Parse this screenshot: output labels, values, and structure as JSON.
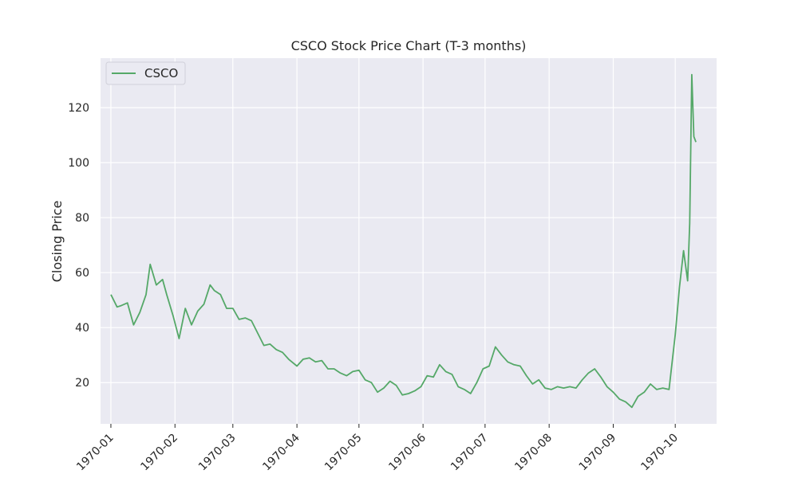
{
  "chart_data": {
    "type": "line",
    "title": "CSCO Stock Price Chart (T-3 months)",
    "xlabel": "",
    "ylabel": "Closing Price",
    "xlim": [
      "1969-12-27",
      "1970-10-21"
    ],
    "ylim": [
      5,
      138
    ],
    "x_ticks": [
      "1970-01-01",
      "1970-02-01",
      "1970-03-01",
      "1970-04-01",
      "1970-05-01",
      "1970-06-01",
      "1970-07-01",
      "1970-08-01",
      "1970-09-01",
      "1970-10-01"
    ],
    "x_tick_labels": [
      "1970-01",
      "1970-02",
      "1970-03",
      "1970-04",
      "1970-05",
      "1970-06",
      "1970-07",
      "1970-08",
      "1970-09",
      "1970-10"
    ],
    "y_ticks": [
      20,
      40,
      60,
      80,
      100,
      120
    ],
    "y_tick_labels": [
      "20",
      "40",
      "60",
      "80",
      "100",
      "120"
    ],
    "grid": true,
    "legend_position": "top-left",
    "colors": {
      "background": "#eaeaf2",
      "grid": "#ffffff",
      "series": "#55a868",
      "text": "#262626"
    },
    "series": [
      {
        "name": "CSCO",
        "x": [
          "1970-01-01",
          "1970-01-04",
          "1970-01-06",
          "1970-01-09",
          "1970-01-12",
          "1970-01-15",
          "1970-01-18",
          "1970-01-20",
          "1970-01-23",
          "1970-01-26",
          "1970-01-28",
          "1970-01-31",
          "1970-02-03",
          "1970-02-06",
          "1970-02-09",
          "1970-02-12",
          "1970-02-15",
          "1970-02-18",
          "1970-02-20",
          "1970-02-23",
          "1970-02-26",
          "1970-03-01",
          "1970-03-04",
          "1970-03-07",
          "1970-03-10",
          "1970-03-13",
          "1970-03-16",
          "1970-03-19",
          "1970-03-22",
          "1970-03-25",
          "1970-03-28",
          "1970-04-01",
          "1970-04-04",
          "1970-04-07",
          "1970-04-10",
          "1970-04-13",
          "1970-04-16",
          "1970-04-19",
          "1970-04-22",
          "1970-04-25",
          "1970-04-28",
          "1970-05-01",
          "1970-05-04",
          "1970-05-07",
          "1970-05-10",
          "1970-05-13",
          "1970-05-16",
          "1970-05-19",
          "1970-05-22",
          "1970-05-25",
          "1970-05-28",
          "1970-05-31",
          "1970-06-03",
          "1970-06-06",
          "1970-06-09",
          "1970-06-12",
          "1970-06-15",
          "1970-06-18",
          "1970-06-21",
          "1970-06-24",
          "1970-06-27",
          "1970-06-30",
          "1970-07-03",
          "1970-07-06",
          "1970-07-09",
          "1970-07-12",
          "1970-07-15",
          "1970-07-18",
          "1970-07-21",
          "1970-07-24",
          "1970-07-27",
          "1970-07-30",
          "1970-08-02",
          "1970-08-05",
          "1970-08-08",
          "1970-08-11",
          "1970-08-14",
          "1970-08-17",
          "1970-08-20",
          "1970-08-23",
          "1970-08-26",
          "1970-08-29",
          "1970-09-01",
          "1970-09-04",
          "1970-09-07",
          "1970-09-10",
          "1970-09-13",
          "1970-09-16",
          "1970-09-19",
          "1970-09-22",
          "1970-09-25",
          "1970-09-28",
          "1970-10-01",
          "1970-10-03",
          "1970-10-05",
          "1970-10-07",
          "1970-10-08",
          "1970-10-09",
          "1970-10-10",
          "1970-10-11"
        ],
        "values": [
          52.0,
          47.5,
          48.0,
          49.0,
          41.0,
          45.5,
          52.0,
          63.0,
          55.5,
          57.5,
          52.0,
          44.5,
          36.0,
          47.0,
          41.0,
          46.0,
          48.5,
          55.5,
          53.5,
          52.0,
          47.0,
          47.0,
          43.0,
          43.5,
          42.5,
          38.0,
          33.5,
          34.0,
          32.0,
          31.0,
          28.5,
          26.0,
          28.5,
          29.0,
          27.5,
          28.0,
          25.0,
          25.0,
          23.5,
          22.5,
          24.0,
          24.5,
          21.0,
          20.0,
          16.5,
          18.0,
          20.5,
          19.0,
          15.5,
          16.0,
          17.0,
          18.5,
          22.5,
          22.0,
          26.5,
          24.0,
          23.0,
          18.5,
          17.5,
          16.0,
          20.0,
          25.0,
          26.0,
          33.0,
          30.0,
          27.5,
          26.5,
          26.0,
          22.5,
          19.5,
          21.0,
          18.0,
          17.5,
          18.5,
          18.0,
          18.5,
          18.0,
          21.0,
          23.5,
          25.0,
          22.0,
          18.5,
          16.5,
          14.0,
          13.0,
          11.0,
          15.0,
          16.5,
          19.5,
          17.5,
          18.0,
          17.5,
          37.5,
          54.5,
          68.0,
          57.0,
          78.0,
          132.0,
          109.5,
          107.5
        ]
      }
    ]
  }
}
